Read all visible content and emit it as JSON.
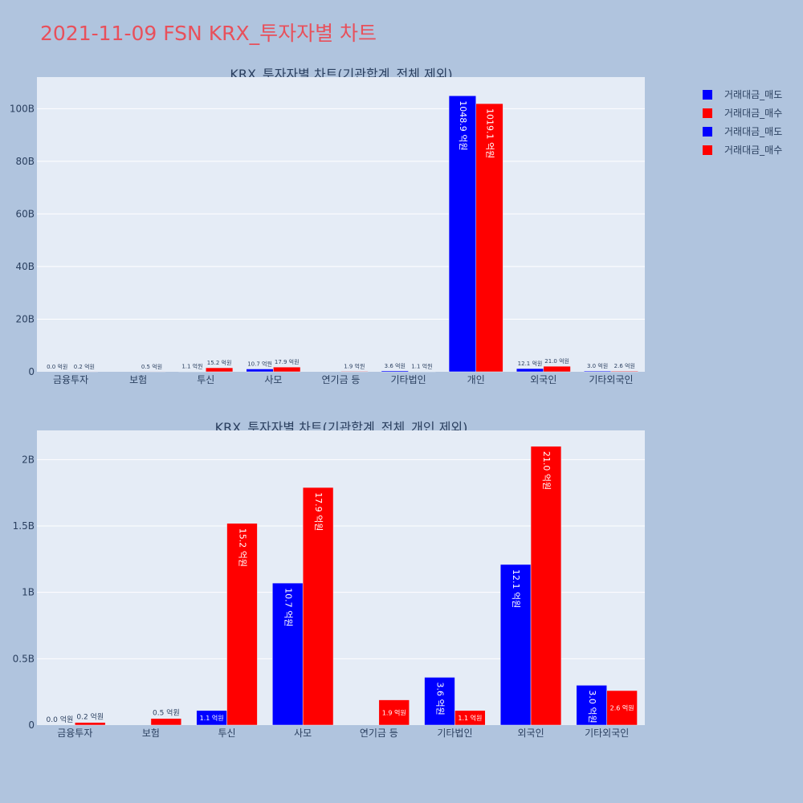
{
  "page_title": "2021-11-09 FSN KRX_투자자별 차트",
  "legend": [
    {
      "label": "거래대금_매도",
      "color": "#0000ff"
    },
    {
      "label": "거래대금_매수",
      "color": "#ff0000"
    },
    {
      "label": "거래대금_매도",
      "color": "#0000ff"
    },
    {
      "label": "거래대금_매수",
      "color": "#ff0000"
    }
  ],
  "chart_data": [
    {
      "type": "bar",
      "title": "KRX_투자자별 차트(기관합계_전체 제외)",
      "categories": [
        "금융투자",
        "보험",
        "투신",
        "사모",
        "연기금 등",
        "기타법인",
        "개인",
        "외국인",
        "기타외국인"
      ],
      "series": [
        {
          "name": "거래대금_매도",
          "color": "#0000ff",
          "values": [
            0.0,
            0,
            0.11,
            1.07,
            0,
            0.36,
            104.89,
            1.21,
            0.3
          ],
          "labels": [
            "0.0 억원",
            "",
            "1.1 억원",
            "10.7 억원",
            "",
            "3.6 억원",
            "1048.9 억원",
            "12.1 억원",
            "3.0 억원"
          ]
        },
        {
          "name": "거래대금_매수",
          "color": "#ff0000",
          "values": [
            0.02,
            0.05,
            1.52,
            1.79,
            0.19,
            0.11,
            101.91,
            2.1,
            0.26
          ],
          "labels": [
            "0.2 억원",
            "0.5 억원",
            "15.2 억원",
            "17.9 억원",
            "1.9 억원",
            "1.1 억원",
            "1019.1 억원",
            "21.0 억원",
            "2.6 억원"
          ]
        }
      ],
      "y_unit": "B",
      "ylim": [
        0,
        112
      ],
      "y_ticks": [
        0,
        20,
        40,
        60,
        80,
        100
      ],
      "y_tick_labels": [
        "0",
        "20B",
        "40B",
        "60B",
        "80B",
        "100B"
      ],
      "grid": true
    },
    {
      "type": "bar",
      "title": "KRX_투자자별 차트(기관합계_전체_개인 제외)",
      "categories": [
        "금융투자",
        "보험",
        "투신",
        "사모",
        "연기금 등",
        "기타법인",
        "외국인",
        "기타외국인"
      ],
      "series": [
        {
          "name": "거래대금_매도",
          "color": "#0000ff",
          "values": [
            0.0,
            0,
            0.11,
            1.07,
            0,
            0.36,
            1.21,
            0.3
          ],
          "labels": [
            "0.0 억원",
            "",
            "1.1 억원",
            "10.7 억원",
            "",
            "3.6 억원",
            "12.1 억원",
            "3.0 억원"
          ]
        },
        {
          "name": "거래대금_매수",
          "color": "#ff0000",
          "values": [
            0.02,
            0.05,
            1.52,
            1.79,
            0.19,
            0.11,
            2.1,
            0.26
          ],
          "labels": [
            "0.2 억원",
            "0.5 억원",
            "15.2 억원",
            "17.9 억원",
            "1.9 억원",
            "1.1 억원",
            "21.0 억원",
            "2.6 억원"
          ]
        }
      ],
      "y_unit": "B",
      "ylim": [
        0,
        2.22
      ],
      "y_ticks": [
        0,
        0.5,
        1,
        1.5,
        2
      ],
      "y_tick_labels": [
        "0",
        "0.5B",
        "1B",
        "1.5B",
        "2B"
      ],
      "grid": true
    }
  ]
}
